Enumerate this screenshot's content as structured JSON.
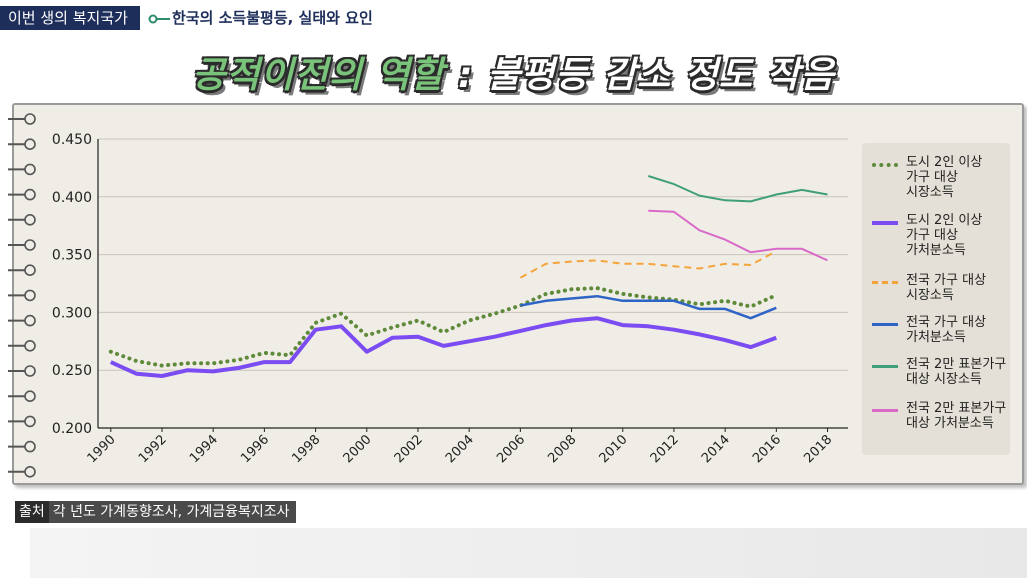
{
  "header": {
    "tag": "이번 생의 복지국가",
    "subtitle": "한국의 소득불평등, 실태와 요인"
  },
  "headline": {
    "part1": "공적이전의 역할",
    "sep": " : ",
    "part2": "불평등 감소 정도 작음"
  },
  "source": {
    "label": "출처",
    "text": "각 년도 가계동향조사, 가계금융복지조사"
  },
  "chart_data": {
    "type": "line",
    "ylim": [
      0.2,
      0.45
    ],
    "xlim": [
      1989.5,
      2018.8
    ],
    "yticks": [
      "0.200",
      "0.250",
      "0.300",
      "0.350",
      "0.400",
      "0.450"
    ],
    "xticks": [
      "1990",
      "1992",
      "1994",
      "1996",
      "1998",
      "2000",
      "2002",
      "2004",
      "2006",
      "2008",
      "2010",
      "2012",
      "2014",
      "2016",
      "2018"
    ],
    "grid": true,
    "legend_position": "right",
    "series": [
      {
        "name": "도시 2인 이상\n가구 대상\n시장소득",
        "color": "#5e8a3a",
        "style": "dotted",
        "width": 4,
        "x": [
          1990,
          1991,
          1992,
          1993,
          1994,
          1995,
          1996,
          1997,
          1998,
          1999,
          2000,
          2001,
          2002,
          2003,
          2004,
          2005,
          2006,
          2007,
          2008,
          2009,
          2010,
          2011,
          2012,
          2013,
          2014,
          2015,
          2016
        ],
        "y": [
          0.266,
          0.258,
          0.254,
          0.256,
          0.256,
          0.259,
          0.265,
          0.263,
          0.291,
          0.299,
          0.28,
          0.287,
          0.293,
          0.283,
          0.293,
          0.299,
          0.306,
          0.316,
          0.32,
          0.321,
          0.316,
          0.313,
          0.311,
          0.307,
          0.31,
          0.305,
          0.315
        ]
      },
      {
        "name": "도시 2인 이상\n가구 대상\n가처분소득",
        "color": "#7b4cf2",
        "style": "solid",
        "width": 4,
        "x": [
          1990,
          1991,
          1992,
          1993,
          1994,
          1995,
          1996,
          1997,
          1998,
          1999,
          2000,
          2001,
          2002,
          2003,
          2004,
          2005,
          2006,
          2007,
          2008,
          2009,
          2010,
          2011,
          2012,
          2013,
          2014,
          2015,
          2016
        ],
        "y": [
          0.257,
          0.247,
          0.245,
          0.25,
          0.249,
          0.252,
          0.257,
          0.257,
          0.285,
          0.288,
          0.266,
          0.278,
          0.279,
          0.271,
          0.275,
          0.279,
          0.284,
          0.289,
          0.293,
          0.295,
          0.289,
          0.288,
          0.285,
          0.281,
          0.276,
          0.27,
          0.278
        ]
      },
      {
        "name": "전국 가구 대상\n시장소득",
        "color": "#f5a43a",
        "style": "dashed",
        "width": 2,
        "x": [
          2006,
          2007,
          2008,
          2009,
          2010,
          2011,
          2012,
          2013,
          2014,
          2015,
          2016
        ],
        "y": [
          0.33,
          0.342,
          0.344,
          0.345,
          0.342,
          0.342,
          0.34,
          0.338,
          0.342,
          0.341,
          0.353
        ]
      },
      {
        "name": "전국 가구 대상\n가처분소득",
        "color": "#2d64c6",
        "style": "solid",
        "width": 2.5,
        "x": [
          2006,
          2007,
          2008,
          2009,
          2010,
          2011,
          2012,
          2013,
          2014,
          2015,
          2016
        ],
        "y": [
          0.306,
          0.31,
          0.312,
          0.314,
          0.31,
          0.31,
          0.31,
          0.303,
          0.303,
          0.295,
          0.304
        ]
      },
      {
        "name": "전국 2만 표본가구\n대상 시장소득",
        "color": "#3f9f78",
        "style": "solid",
        "width": 2,
        "x": [
          2011,
          2012,
          2013,
          2014,
          2015,
          2016,
          2017,
          2018
        ],
        "y": [
          0.418,
          0.411,
          0.401,
          0.397,
          0.396,
          0.402,
          0.406,
          0.402
        ]
      },
      {
        "name": "전국 2만 표본가구\n대상 가처분소득",
        "color": "#d96ac8",
        "style": "solid",
        "width": 2,
        "x": [
          2011,
          2012,
          2013,
          2014,
          2015,
          2016,
          2017,
          2018
        ],
        "y": [
          0.388,
          0.387,
          0.371,
          0.363,
          0.352,
          0.355,
          0.355,
          0.345
        ]
      }
    ]
  }
}
